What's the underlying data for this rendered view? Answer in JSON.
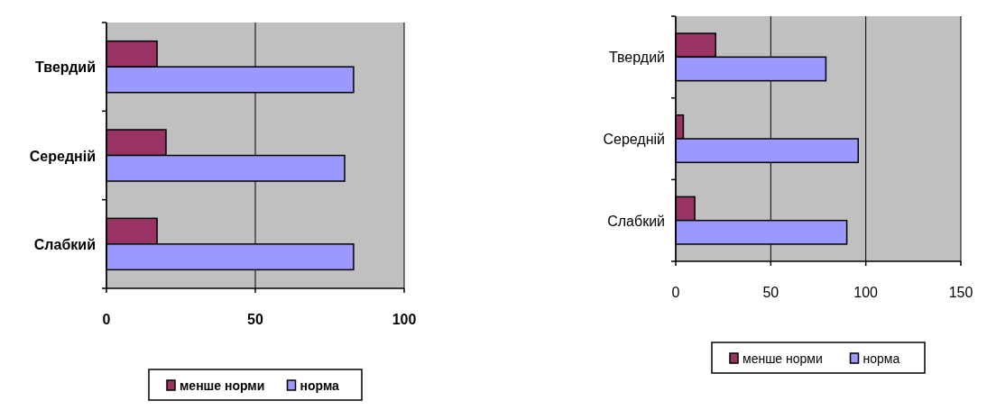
{
  "chart_data": [
    {
      "type": "bar",
      "orientation": "horizontal",
      "categories": [
        "Твердий",
        "Середній",
        "Слабкий"
      ],
      "series": [
        {
          "name": "менше норми",
          "color": "#993366",
          "values": [
            17,
            20,
            17
          ]
        },
        {
          "name": "норма",
          "color": "#9999ff",
          "values": [
            83,
            80,
            83
          ]
        }
      ],
      "xlim": [
        0,
        100
      ],
      "xticks": [
        0,
        50,
        100
      ],
      "grid": "x",
      "legend": "bottom"
    },
    {
      "type": "bar",
      "orientation": "horizontal",
      "categories": [
        "Твердий",
        "Середній",
        "Слабкий"
      ],
      "series": [
        {
          "name": "менше норми",
          "color": "#993366",
          "values": [
            21,
            4,
            10
          ]
        },
        {
          "name": "норма",
          "color": "#9999ff",
          "values": [
            79,
            96,
            90
          ]
        }
      ],
      "xlim": [
        0,
        150
      ],
      "xticks": [
        0,
        50,
        100,
        150
      ],
      "grid": "x",
      "legend": "bottom"
    }
  ]
}
